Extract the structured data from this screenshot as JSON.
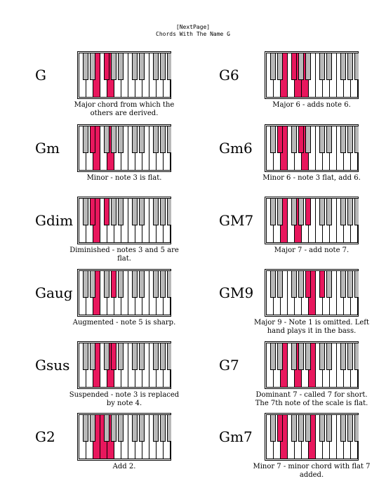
{
  "header": {
    "nextpage": "[NextPage]",
    "title": "Chords With The Name G"
  },
  "colors": {
    "highlight": "#e8175d",
    "black_key": "#b9b9b9"
  },
  "chords": [
    {
      "name": "G",
      "desc": "Major chord from which the others are derived.",
      "white": [
        2,
        4
      ],
      "black": [
        2
      ]
    },
    {
      "name": "G6",
      "desc": "Major 6 - adds note 6.",
      "white": [
        2,
        4,
        5
      ],
      "black": [
        2
      ]
    },
    {
      "name": "Gm",
      "desc": "Minor - note 3 is flat.",
      "white": [
        2,
        4
      ],
      "black": [
        1
      ]
    },
    {
      "name": "Gm6",
      "desc": "Minor 6 - note 3 flat, add 6.",
      "white": [
        2,
        5
      ],
      "black": [
        1,
        3
      ]
    },
    {
      "name": "Gdim",
      "desc": "Diminished - notes 3 and 5 are flat.",
      "white": [
        2
      ],
      "black": [
        1,
        2
      ]
    },
    {
      "name": "GM7",
      "desc": "Major 7 - add note 7.",
      "white": [
        2,
        4
      ],
      "black": [
        4
      ]
    },
    {
      "name": "Gaug",
      "desc": "Augmented - note 5 is sharp.",
      "white": [
        2
      ],
      "black": [
        3
      ]
    },
    {
      "name": "GM9",
      "desc": "Major 9 - Note 1 is omitted. Left hand plays it in the bass.",
      "white": [
        6
      ],
      "black": [
        4,
        5
      ]
    },
    {
      "name": "Gsus",
      "desc": "Suspended - note 3 is replaced by note 4.",
      "white": [
        2,
        4
      ],
      "black": [
        3
      ]
    },
    {
      "name": "G7",
      "desc": "Dominant 7 - called 7 for short. The 7th note of the scale is flat.",
      "white": [
        2,
        4,
        6
      ],
      "black": []
    },
    {
      "name": "G2",
      "desc": "Add 2.",
      "white": [
        2,
        3,
        4
      ],
      "black": []
    },
    {
      "name": "Gm7",
      "desc": "Minor 7 - minor chord with flat 7 added.",
      "white": [
        2,
        6
      ],
      "black": [
        1
      ]
    }
  ]
}
